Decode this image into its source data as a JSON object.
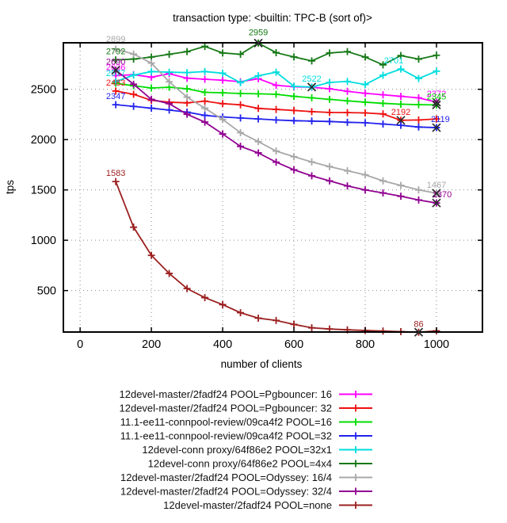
{
  "chart_data": {
    "type": "line",
    "title": "transaction type: <builtin: TPC-B (sort of)>",
    "xlabel": "number of clients",
    "ylabel": "tps",
    "xticks": [
      0,
      200,
      400,
      600,
      800,
      1000
    ],
    "yticks": [
      500,
      1000,
      1500,
      2000,
      2500
    ],
    "xlim": [
      -47,
      1129
    ],
    "ylim": [
      88,
      2962
    ],
    "grid": "dotted",
    "legend_position": "below-right-aligned",
    "x": [
      100,
      150,
      200,
      250,
      300,
      350,
      400,
      450,
      500,
      550,
      600,
      650,
      700,
      750,
      800,
      850,
      900,
      950,
      1000
    ],
    "series": [
      {
        "name": "12devel-master/2fadf24 POOL=Pgbouncer: 16",
        "color": "#ff00ff",
        "values": [
          2636,
          2645,
          2620,
          2655,
          2610,
          2600,
          2590,
          2575,
          2605,
          2540,
          2525,
          2520,
          2505,
          2480,
          2460,
          2445,
          2430,
          2415,
          2372
        ],
        "annotations": [
          {
            "x": 100,
            "y": 2636,
            "label": "2636"
          },
          {
            "x": 1000,
            "y": 2372,
            "label": "2372",
            "marker": true
          }
        ]
      },
      {
        "name": "12devel-master/2fadf24 POOL=Pgbouncer: 32",
        "color": "#ee1111",
        "values": [
          2483,
          2450,
          2390,
          2372,
          2365,
          2382,
          2357,
          2346,
          2310,
          2300,
          2290,
          2278,
          2270,
          2268,
          2265,
          2255,
          2192,
          2195,
          2205
        ],
        "annotations": [
          {
            "x": 100,
            "y": 2483,
            "label": "2483"
          },
          {
            "x": 900,
            "y": 2192,
            "label": "2192",
            "marker": true
          }
        ]
      },
      {
        "name": "11.1-ee11-connpool-review/09ca4f2 POOL=16",
        "color": "#00dd00",
        "values": [
          2560,
          2535,
          2513,
          2520,
          2505,
          2470,
          2465,
          2458,
          2455,
          2450,
          2430,
          2415,
          2400,
          2385,
          2372,
          2360,
          2352,
          2347,
          2345
        ],
        "annotations": [
          {
            "x": 1000,
            "y": 2345,
            "label": "2345",
            "marker": true
          }
        ]
      },
      {
        "name": "11.1-ee11-connpool-review/09ca4f2 POOL=32",
        "color": "#2222ee",
        "values": [
          2347,
          2330,
          2312,
          2294,
          2273,
          2241,
          2225,
          2215,
          2205,
          2195,
          2188,
          2184,
          2180,
          2172,
          2168,
          2155,
          2142,
          2125,
          2119
        ],
        "annotations": [
          {
            "x": 100,
            "y": 2347,
            "label": "2347"
          },
          {
            "x": 1000,
            "y": 2119,
            "label": "2119",
            "marker": true,
            "dx": 5
          }
        ]
      },
      {
        "name": "12devel-conn proxy/64f86e2 POOL=32x1",
        "color": "#00dddd",
        "values": [
          2577,
          2640,
          2676,
          2670,
          2666,
          2676,
          2660,
          2566,
          2634,
          2670,
          2530,
          2522,
          2568,
          2578,
          2547,
          2639,
          2701,
          2607,
          2680
        ],
        "annotations": [
          {
            "x": 100,
            "y": 2577,
            "label": "2577"
          },
          {
            "x": 650,
            "y": 2522,
            "label": "2522",
            "marker": true
          },
          {
            "x": 900,
            "y": 2701,
            "label": "2701",
            "dx": -9
          }
        ]
      },
      {
        "name": "12devel-conn proxy/64f86e2 POOL=4x4",
        "color": "#157815",
        "values": [
          2792,
          2800,
          2820,
          2848,
          2874,
          2926,
          2861,
          2848,
          2959,
          2864,
          2821,
          2782,
          2861,
          2874,
          2820,
          2743,
          2835,
          2800,
          2838
        ],
        "annotations": [
          {
            "x": 100,
            "y": 2792,
            "label": "2792"
          },
          {
            "x": 500,
            "y": 2959,
            "label": "2959",
            "marker": true,
            "dy": -10
          }
        ]
      },
      {
        "name": "12devel-master/2fadf24 POOL=Odyssey: 16/4",
        "color": "#a8a8a8",
        "values": [
          2899,
          2850,
          2760,
          2574,
          2422,
          2312,
          2200,
          2069,
          1980,
          1886,
          1830,
          1778,
          1732,
          1690,
          1650,
          1590,
          1545,
          1500,
          1467
        ],
        "annotations": [
          {
            "x": 100,
            "y": 2899,
            "label": "2899",
            "dy": -9
          },
          {
            "x": 1000,
            "y": 1467,
            "label": "1467",
            "marker": true
          }
        ]
      },
      {
        "name": "12devel-master/2fadf24 POOL=Odyssey: 32/4",
        "color": "#910091",
        "values": [
          2690,
          2550,
          2400,
          2357,
          2252,
          2174,
          2056,
          1933,
          1868,
          1776,
          1700,
          1640,
          1590,
          1540,
          1500,
          1470,
          1437,
          1400,
          1370
        ],
        "annotations": [
          {
            "x": 100,
            "y": 2690,
            "label": "2690",
            "marker": true
          },
          {
            "x": 1000,
            "y": 1370,
            "label": "1370",
            "marker": true,
            "dx": 7
          }
        ]
      },
      {
        "name": "12devel-master/2fadf24 POOL=none",
        "color": "#9b2020",
        "values": [
          1583,
          1130,
          850,
          670,
          520,
          430,
          360,
          280,
          226,
          203,
          164,
          130,
          118,
          110,
          104,
          98,
          92,
          86,
          100
        ],
        "annotations": [
          {
            "x": 100,
            "y": 1583,
            "label": "1583"
          },
          {
            "x": 950,
            "y": 86,
            "label": "86",
            "marker": true
          }
        ]
      }
    ]
  }
}
